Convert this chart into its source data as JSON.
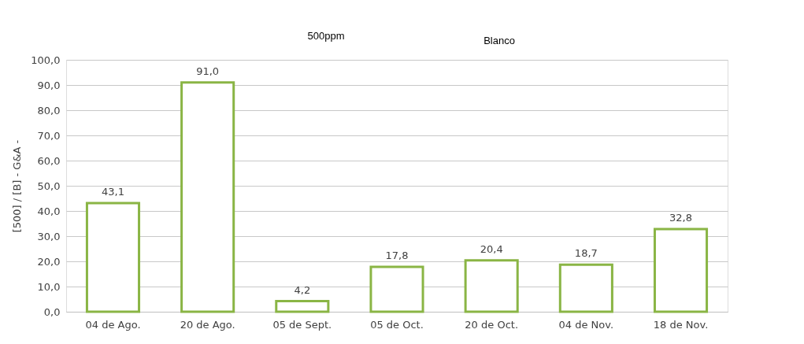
{
  "chart_data": {
    "type": "bar",
    "ylabel": "[500] / [B] - G&A -",
    "annotations": [
      "500ppm",
      "Blanco"
    ],
    "categories": [
      "04 de Ago.",
      "20 de Ago.",
      "05 de Sept.",
      "05 de Oct.",
      "20 de Oct.",
      "04 de Nov.",
      "18 de Nov."
    ],
    "series": [
      {
        "color": "#8ab545",
        "values": [
          43.1,
          91.0,
          4.2,
          17.8,
          20.4,
          18.7,
          32.8
        ],
        "value_labels": [
          "43,1",
          "91,0",
          "4,2",
          "17,8",
          "20,4",
          "18,7",
          "32,8"
        ]
      }
    ],
    "ylim": [
      0,
      100
    ],
    "yticks": [
      {
        "value": 0,
        "label": "0,0"
      },
      {
        "value": 10,
        "label": "10,0"
      },
      {
        "value": 20,
        "label": "20,0"
      },
      {
        "value": 30,
        "label": "30,0"
      },
      {
        "value": 40,
        "label": "40,0"
      },
      {
        "value": 50,
        "label": "50,0"
      },
      {
        "value": 60,
        "label": "60,0"
      },
      {
        "value": 70,
        "label": "70,0"
      },
      {
        "value": 80,
        "label": "80,0"
      },
      {
        "value": 90,
        "label": "90,0"
      },
      {
        "value": 100,
        "label": "100,0"
      }
    ],
    "grid": "y"
  }
}
